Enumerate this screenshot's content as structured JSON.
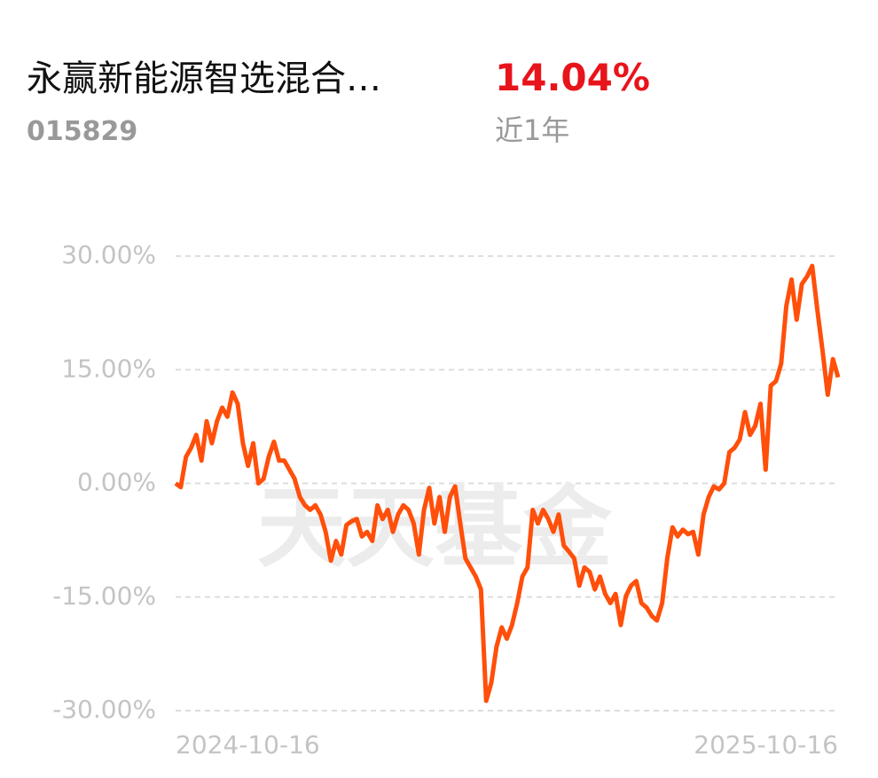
{
  "header": {
    "fund_name": "永赢新能源智选混合…",
    "fund_code": "015829",
    "return": "14.04%",
    "period": "近1年"
  },
  "watermark": "天天基金",
  "chart_data": {
    "type": "line",
    "categories": [
      "2024-10-16",
      null,
      null,
      null,
      null,
      null,
      null,
      null,
      null,
      null,
      null,
      null,
      null,
      null,
      null,
      null,
      null,
      null,
      null,
      null,
      null,
      null,
      null,
      null,
      null,
      null,
      null,
      null,
      null,
      null,
      null,
      null,
      null,
      null,
      null,
      null,
      null,
      null,
      null,
      null,
      null,
      null,
      null,
      null,
      null,
      null,
      null,
      null,
      null,
      null,
      null,
      null,
      null,
      null,
      null,
      null,
      null,
      null,
      null,
      null,
      null,
      null,
      null,
      null,
      null,
      null,
      null,
      null,
      null,
      null,
      null,
      null,
      null,
      null,
      null,
      null,
      null,
      null,
      null,
      null,
      null,
      null,
      null,
      null,
      null,
      null,
      null,
      null,
      null,
      null,
      null,
      null,
      null,
      null,
      null,
      null,
      null,
      null,
      null,
      null,
      null,
      null,
      null,
      null,
      null,
      null,
      null,
      null,
      null,
      null,
      null,
      null,
      null,
      null,
      null,
      null,
      null,
      null,
      null,
      null,
      null,
      null,
      null,
      null,
      null,
      null,
      null,
      null,
      "2025-10-16"
    ],
    "series": [
      {
        "color": "#ff4f0a",
        "values": [
          0,
          -0.5,
          3.5,
          4.7,
          6.4,
          3,
          8.2,
          5.3,
          8.2,
          10,
          8.8,
          12,
          10.5,
          5.3,
          2.3,
          5.3,
          0,
          0.6,
          3.5,
          5.5,
          3,
          3,
          1.8,
          0.6,
          -1.8,
          -2.9,
          -3.5,
          -2.9,
          -4.1,
          -6.4,
          -10.2,
          -7.6,
          -9.4,
          -5.5,
          -5,
          -4.7,
          -7,
          -6.4,
          -7.6,
          -2.9,
          -4.7,
          -3.5,
          -6.4,
          -4.1,
          -2.9,
          -3.5,
          -5.3,
          -9.4,
          -3.5,
          -0.6,
          -5.3,
          -1.8,
          -6.4,
          -1.8,
          -0.4,
          -5.3,
          -9.9,
          -11.1,
          -12.3,
          -14,
          -28.7,
          -26.3,
          -21.6,
          -19,
          -20.5,
          -18.7,
          -15.8,
          -12.3,
          -11.1,
          -3.5,
          -5.3,
          -3.5,
          -4.7,
          -6.4,
          -4.1,
          -8.2,
          -9,
          -9.9,
          -13.5,
          -11.1,
          -11.7,
          -14,
          -12.3,
          -14.6,
          -15.8,
          -14.6,
          -18.7,
          -14.9,
          -13.5,
          -12.9,
          -15.8,
          -16.4,
          -17.5,
          -18.1,
          -15.8,
          -9.9,
          -5.8,
          -7,
          -6.1,
          -6.7,
          -6.4,
          -9.4,
          -4.1,
          -1.8,
          -0.4,
          -0.8,
          0,
          4.1,
          4.7,
          5.8,
          9.4,
          6.4,
          7.6,
          10.5,
          1.8,
          12.9,
          13.5,
          15.8,
          23.4,
          26.9,
          21.6,
          26.3,
          27.3,
          28.7,
          22.8,
          17.5,
          11.7,
          16.4,
          14
        ]
      }
    ],
    "ylim": [
      -30,
      30
    ],
    "yticks": [
      {
        "value": -30,
        "label": "-30.00%"
      },
      {
        "value": -15,
        "label": "-15.00%"
      },
      {
        "value": 0,
        "label": "0.00%"
      },
      {
        "value": 15,
        "label": "15.00%"
      },
      {
        "value": 30,
        "label": "30.00%"
      }
    ],
    "grid": true
  }
}
